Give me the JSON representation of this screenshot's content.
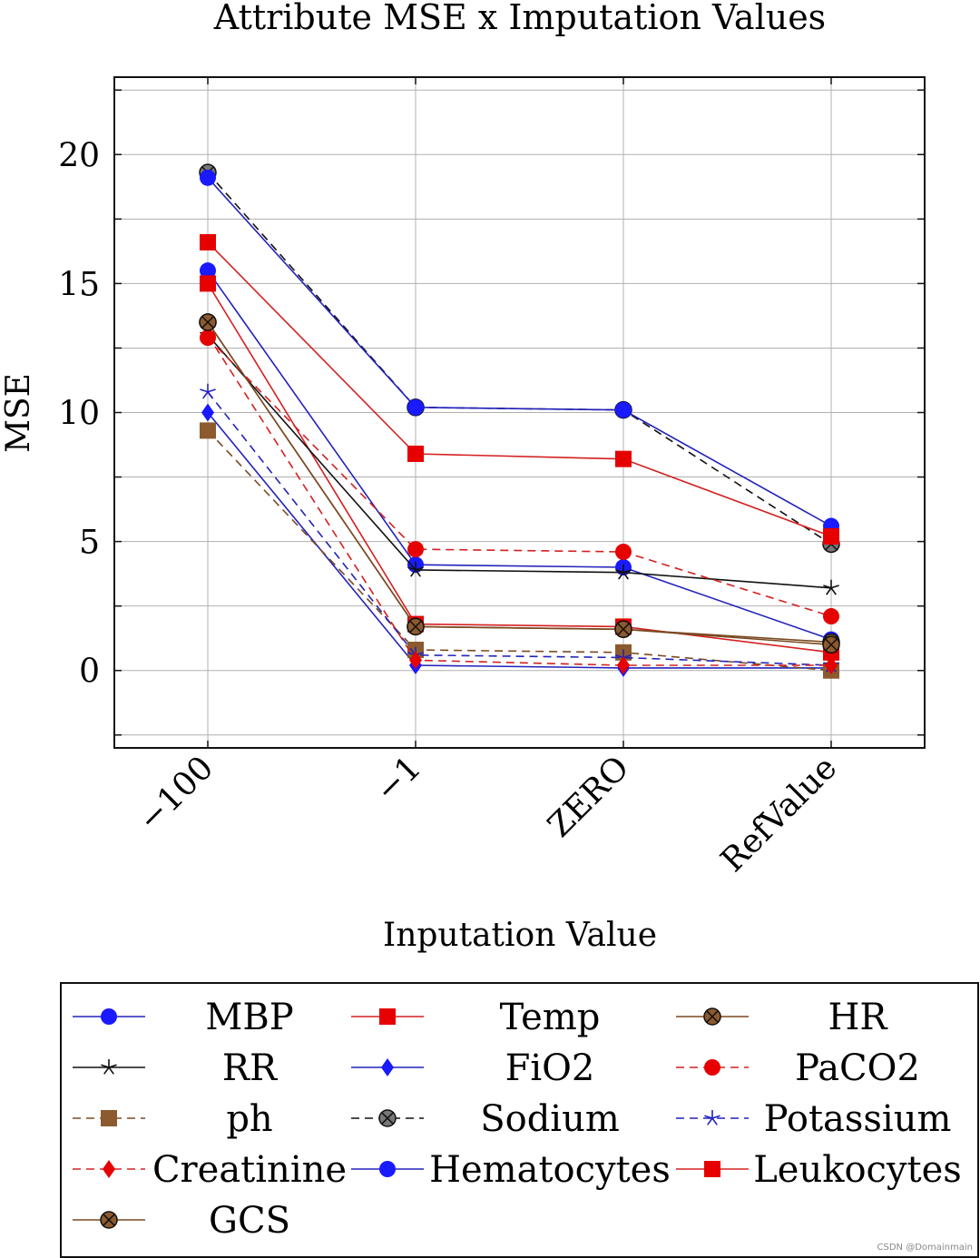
{
  "chart_data": {
    "type": "line",
    "title": "Attribute MSE x Imputation Values",
    "xlabel": "Inputation Value",
    "ylabel": "MSE",
    "categories": [
      "−100",
      "−1",
      "ZERO",
      "RefValue"
    ],
    "ylim": [
      -3,
      23
    ],
    "yticks": [
      0,
      5,
      10,
      15,
      20
    ],
    "grid": true,
    "legend_position": "bottom",
    "series": [
      {
        "name": "MBP",
        "color": "#1a1aff",
        "line": "#2222bb",
        "dash": false,
        "marker": "circle",
        "values": [
          15.5,
          4.1,
          4.0,
          1.2
        ]
      },
      {
        "name": "Temp",
        "color": "#e60000",
        "line": "#d42020",
        "dash": false,
        "marker": "square",
        "values": [
          15.0,
          1.8,
          1.7,
          0.7
        ]
      },
      {
        "name": "HR",
        "color": "#8c5a2e",
        "line": "#7a4a22",
        "dash": false,
        "marker": "circle-x",
        "values": [
          13.5,
          1.7,
          1.6,
          1.1
        ]
      },
      {
        "name": "RR",
        "color": "#111111",
        "line": "#111111",
        "dash": false,
        "marker": "star",
        "values": [
          13.0,
          3.9,
          3.8,
          3.2
        ]
      },
      {
        "name": "FiO2",
        "color": "#1a1aff",
        "line": "#2222bb",
        "dash": false,
        "marker": "diamond",
        "values": [
          10.0,
          0.2,
          0.1,
          0.1
        ]
      },
      {
        "name": "PaCO2",
        "color": "#e60000",
        "line": "#d42020",
        "dash": true,
        "marker": "circle",
        "values": [
          12.9,
          4.7,
          4.6,
          2.1
        ]
      },
      {
        "name": "ph",
        "color": "#8c5a2e",
        "line": "#7a4a22",
        "dash": true,
        "marker": "square",
        "values": [
          9.3,
          0.8,
          0.7,
          0.0
        ]
      },
      {
        "name": "Sodium",
        "color": "#777777",
        "line": "#111111",
        "dash": true,
        "marker": "circle-x",
        "values": [
          19.3,
          10.2,
          10.1,
          4.9
        ]
      },
      {
        "name": "Potassium",
        "color": "#2222bb",
        "line": "#2222bb",
        "dash": true,
        "marker": "star",
        "values": [
          10.8,
          0.6,
          0.5,
          0.2
        ]
      },
      {
        "name": "Creatinine",
        "color": "#e60000",
        "line": "#d42020",
        "dash": true,
        "marker": "diamond",
        "values": [
          13.0,
          0.4,
          0.2,
          0.2
        ]
      },
      {
        "name": "Hematocytes",
        "color": "#1a1aff",
        "line": "#2222bb",
        "dash": false,
        "marker": "circle",
        "values": [
          19.1,
          10.2,
          10.1,
          5.6
        ]
      },
      {
        "name": "Leukocytes",
        "color": "#e60000",
        "line": "#d42020",
        "dash": false,
        "marker": "square",
        "values": [
          16.6,
          8.4,
          8.2,
          5.2
        ]
      },
      {
        "name": "GCS",
        "color": "#8c5a2e",
        "line": "#7a4a22",
        "dash": false,
        "marker": "circle-x",
        "values": [
          13.5,
          1.7,
          1.6,
          1.0
        ]
      }
    ]
  },
  "watermark": "CSDN @Domainmain"
}
